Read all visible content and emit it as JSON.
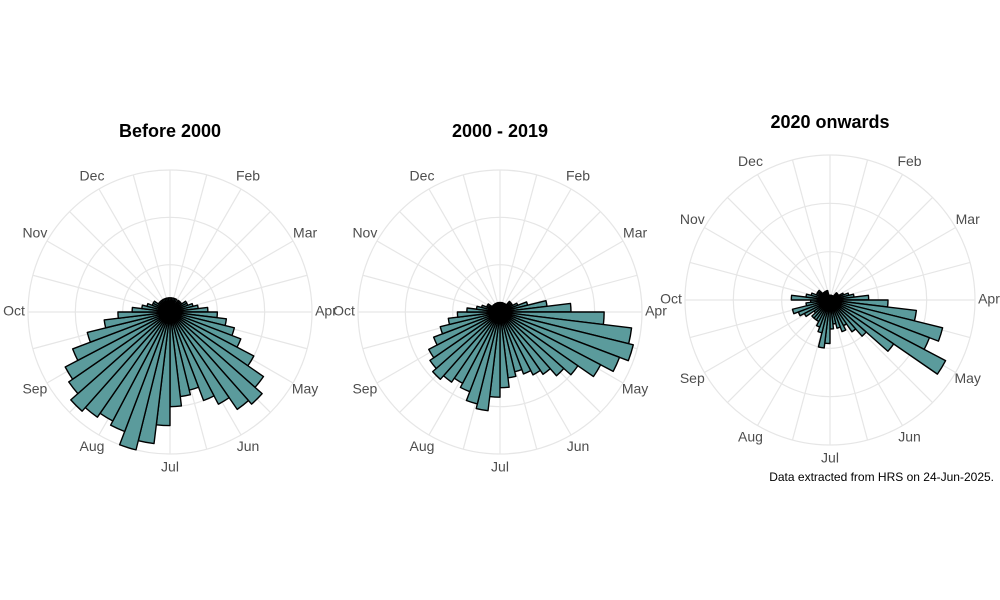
{
  "chart_data": [
    {
      "type": "polar_bar",
      "title": "Before 2000",
      "color": "#5b9b9c",
      "categories": [
        null,
        null,
        null,
        null,
        null,
        null,
        null,
        null,
        null,
        null,
        null,
        null,
        null,
        null,
        null,
        null,
        null,
        null,
        null,
        null,
        null,
        null,
        null,
        null,
        null,
        null,
        null,
        null,
        null,
        null,
        null,
        null,
        null,
        null,
        null,
        null,
        null,
        null,
        null,
        null,
        null,
        null,
        null,
        null,
        null,
        null,
        null,
        null,
        null,
        null,
        null,
        null
      ],
      "values": [
        3,
        3,
        3,
        3,
        2,
        3,
        3,
        3,
        4,
        4,
        5,
        6,
        8,
        10,
        12,
        14,
        16,
        20,
        24,
        26,
        25,
        22,
        20,
        17,
        18,
        20,
        24,
        28,
        30,
        27,
        26,
        27,
        28,
        26,
        25,
        22,
        18,
        14,
        11,
        8,
        6,
        5,
        4,
        4,
        3,
        3,
        3,
        3,
        3,
        3,
        3,
        3
      ],
      "month_labels": [
        null,
        "Feb",
        "Mar",
        "Apr",
        "May",
        "Jun",
        "Jul",
        "Aug",
        "Sep",
        "Oct",
        "Nov",
        "Dec"
      ],
      "ylim": [
        0,
        30
      ],
      "yticks": [
        10,
        20,
        30
      ],
      "grid": true
    },
    {
      "type": "polar_bar",
      "title": "2000 - 2019",
      "color": "#5b9b9c",
      "categories": [
        null,
        null,
        null,
        null,
        null,
        null,
        null,
        null,
        null,
        null,
        null,
        null,
        null,
        null,
        null,
        null,
        null,
        null,
        null,
        null,
        null,
        null,
        null,
        null,
        null,
        null,
        null,
        null,
        null,
        null,
        null,
        null,
        null,
        null,
        null,
        null,
        null,
        null,
        null,
        null,
        null,
        null,
        null,
        null,
        null,
        null,
        null,
        null,
        null,
        null,
        null,
        null
      ],
      "values": [
        2,
        2,
        2,
        2,
        2,
        2,
        3,
        3,
        3,
        4,
        6,
        10,
        15,
        22,
        28,
        29,
        27,
        24,
        20,
        18,
        16,
        15,
        14,
        13,
        14,
        16,
        18,
        21,
        20,
        18,
        17,
        18,
        19,
        18,
        17,
        15,
        13,
        11,
        9,
        7,
        5,
        4,
        3,
        3,
        2,
        2,
        2,
        2,
        2,
        2,
        2,
        2
      ],
      "month_labels": [
        null,
        "Feb",
        "Mar",
        "Apr",
        "May",
        "Jun",
        "Jul",
        "Aug",
        "Sep",
        "Oct",
        "Nov",
        "Dec"
      ],
      "ylim": [
        0,
        30
      ],
      "yticks": [
        10,
        20,
        30
      ],
      "grid": true
    },
    {
      "type": "polar_bar",
      "title": "2020 onwards",
      "color": "#5b9b9c",
      "categories": [
        null,
        null,
        null,
        null,
        null,
        null,
        null,
        null,
        null,
        null,
        null,
        null,
        null,
        null,
        null,
        null,
        null,
        null,
        null,
        null,
        null,
        null,
        null,
        null,
        null,
        null,
        null,
        null,
        null,
        null,
        null,
        null,
        null,
        null,
        null,
        null,
        null,
        null,
        null,
        null,
        null,
        null,
        null,
        null,
        null,
        null,
        null,
        null,
        null,
        null,
        null,
        null
      ],
      "values": [
        1,
        1,
        1,
        1,
        1,
        1,
        2,
        2,
        2,
        3,
        4,
        5,
        8,
        12,
        18,
        24,
        22,
        27,
        16,
        10,
        8,
        6,
        7,
        6,
        5,
        6,
        9,
        10,
        7,
        6,
        5,
        5,
        5,
        4,
        6,
        7,
        8,
        5,
        4,
        8,
        5,
        4,
        3,
        3,
        3,
        2,
        2,
        2,
        2,
        2,
        1,
        1
      ],
      "month_labels": [
        null,
        "Feb",
        "Mar",
        "Apr",
        "May",
        "Jun",
        "Jul",
        "Aug",
        "Sep",
        "Oct",
        "Nov",
        "Dec"
      ],
      "ylim": [
        0,
        30
      ],
      "yticks": [
        10,
        20,
        30
      ],
      "grid": true
    }
  ],
  "caption": "Data extracted from HRS on 24-Jun-2025."
}
